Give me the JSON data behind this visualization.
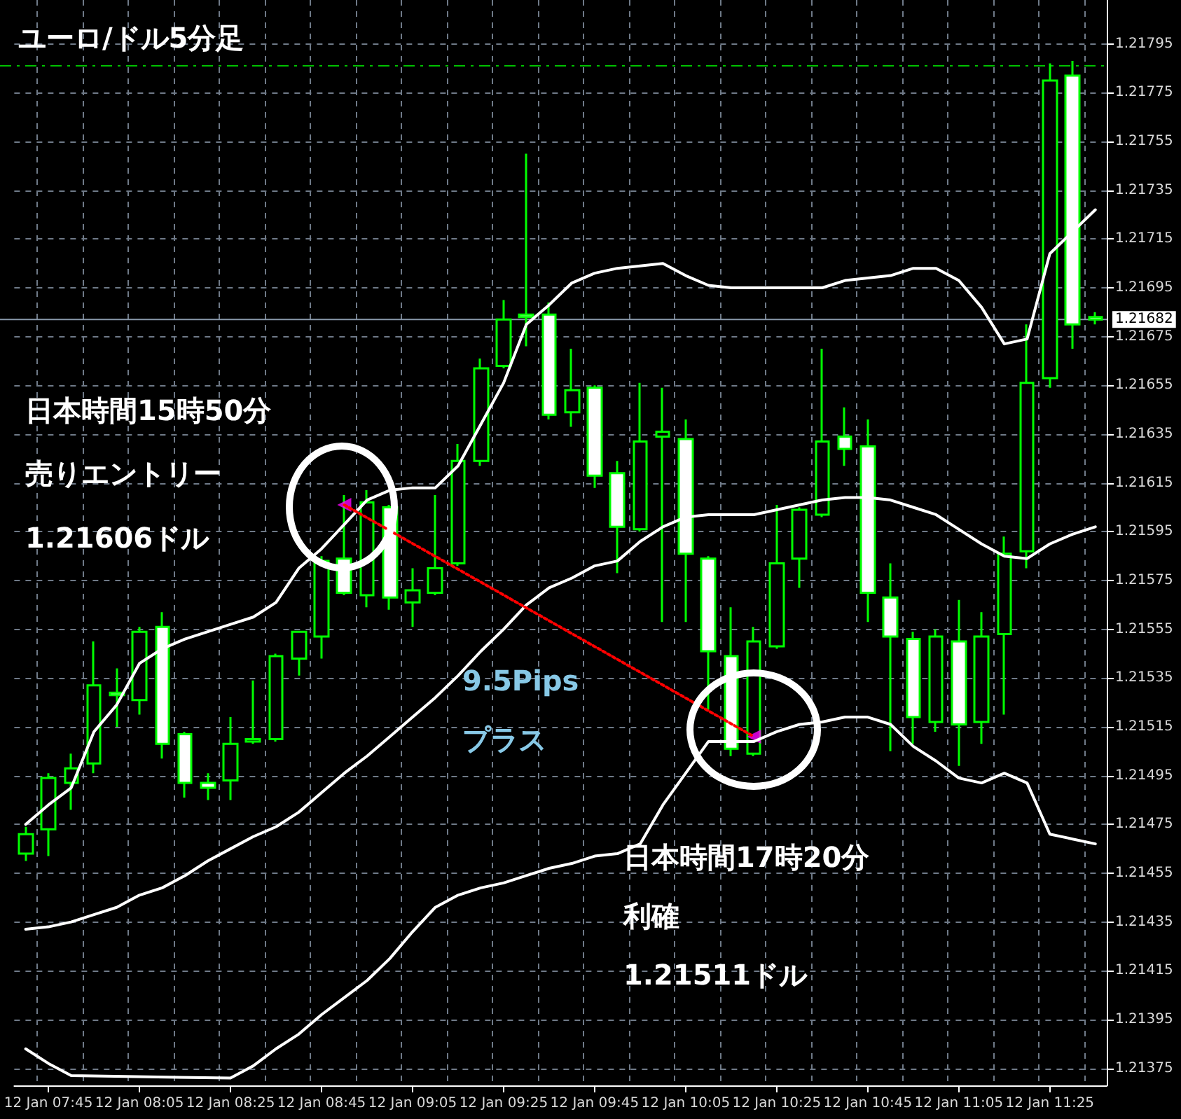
{
  "chart_data": {
    "type": "candlestick",
    "title": "ユーロ/ドル5分足",
    "categories": [
      null,
      "12 Jan 07:45",
      null,
      null,
      null,
      "12 Jan 08:05",
      null,
      null,
      null,
      "12 Jan 08:25",
      null,
      null,
      null,
      "12 Jan 08:45",
      null,
      null,
      null,
      "12 Jan 09:05",
      null,
      null,
      null,
      "12 Jan 09:25",
      null,
      null,
      null,
      "12 Jan 09:45",
      null,
      null,
      null,
      "12 Jan 10:05",
      null,
      null,
      null,
      "12 Jan 10:25",
      null,
      null,
      null,
      "12 Jan 10:45",
      null,
      null,
      null,
      "12 Jan 11:05",
      null,
      null,
      null,
      "12 Jan 11:25",
      null,
      null
    ],
    "color": "#00ff00",
    "ohlc": [
      [
        1.21463,
        1.21474,
        1.2146,
        1.21471
      ],
      [
        1.21473,
        1.21496,
        1.21462,
        1.21494
      ],
      [
        1.21492,
        1.21504,
        1.21481,
        1.21498
      ],
      [
        1.215,
        1.2155,
        1.21496,
        1.21532
      ],
      [
        1.21529,
        1.21539,
        1.21515,
        1.21528
      ],
      [
        1.21526,
        1.21556,
        1.2152,
        1.21554
      ],
      [
        1.21556,
        1.21562,
        1.21502,
        1.21508
      ],
      [
        1.21512,
        1.21513,
        1.21486,
        1.21492
      ],
      [
        1.21492,
        1.21496,
        1.21485,
        1.2149
      ],
      [
        1.21493,
        1.21519,
        1.21485,
        1.21508
      ],
      [
        1.21509,
        1.21534,
        1.21508,
        1.2151
      ],
      [
        1.2151,
        1.21545,
        1.21509,
        1.21544
      ],
      [
        1.21543,
        1.21554,
        1.21536,
        1.21554
      ],
      [
        1.21552,
        1.21585,
        1.21543,
        1.21583
      ],
      [
        1.21584,
        1.2161,
        1.21569,
        1.2157
      ],
      [
        1.21569,
        1.21612,
        1.21564,
        1.21607
      ],
      [
        1.21605,
        1.21606,
        1.21563,
        1.21568
      ],
      [
        1.21566,
        1.2158,
        1.21556,
        1.21571
      ],
      [
        1.2157,
        1.2161,
        1.21569,
        1.2158
      ],
      [
        1.21582,
        1.21631,
        1.21581,
        1.21624
      ],
      [
        1.21624,
        1.21666,
        1.21622,
        1.21662
      ],
      [
        1.21663,
        1.2169,
        1.21662,
        1.21682
      ],
      [
        1.21684,
        1.2175,
        1.21671,
        1.21683
      ],
      [
        1.21684,
        1.21689,
        1.21641,
        1.21643
      ],
      [
        1.21644,
        1.2167,
        1.21638,
        1.21653
      ],
      [
        1.21654,
        1.21655,
        1.21613,
        1.21618
      ],
      [
        1.21619,
        1.21624,
        1.21578,
        1.21597
      ],
      [
        1.21596,
        1.21656,
        1.21595,
        1.21632
      ],
      [
        1.21634,
        1.21654,
        1.21558,
        1.21636
      ],
      [
        1.21633,
        1.21641,
        1.21558,
        1.21586
      ],
      [
        1.21584,
        1.21585,
        1.21522,
        1.21546
      ],
      [
        1.21544,
        1.21564,
        1.21503,
        1.21506
      ],
      [
        1.21504,
        1.21556,
        1.21503,
        1.2155
      ],
      [
        1.21548,
        1.21606,
        1.21547,
        1.21582
      ],
      [
        1.21584,
        1.21605,
        1.21572,
        1.21604
      ],
      [
        1.21602,
        1.2167,
        1.21601,
        1.21632
      ],
      [
        1.21634,
        1.21646,
        1.21622,
        1.21629
      ],
      [
        1.2163,
        1.21641,
        1.21558,
        1.2157
      ],
      [
        1.21568,
        1.21582,
        1.21505,
        1.21552
      ],
      [
        1.21551,
        1.21554,
        1.21508,
        1.21519
      ],
      [
        1.21517,
        1.21555,
        1.21513,
        1.21552
      ],
      [
        1.2155,
        1.21567,
        1.21499,
        1.21516
      ],
      [
        1.21517,
        1.21562,
        1.21508,
        1.21552
      ],
      [
        1.21553,
        1.21593,
        1.2152,
        1.21586
      ],
      [
        1.21587,
        1.2168,
        1.2158,
        1.21656
      ],
      [
        1.21658,
        1.21787,
        1.21654,
        1.2178
      ],
      [
        1.21782,
        1.21788,
        1.2167,
        1.2168
      ],
      [
        1.21683,
        1.21685,
        1.2168,
        1.21682
      ]
    ],
    "series": [
      {
        "type": "line",
        "color": "#ffffff",
        "marker": "none",
        "values": [
          1.21475,
          1.21483,
          1.2149,
          1.21513,
          1.21524,
          1.21541,
          1.21547,
          1.21551,
          1.21554,
          1.21557,
          1.2156,
          1.21566,
          1.2158,
          1.21588,
          1.21598,
          1.21608,
          1.21612,
          1.21613,
          1.21613,
          1.21622,
          1.21639,
          1.21656,
          1.2168,
          1.21688,
          1.21697,
          1.21701,
          1.21703,
          1.21704,
          1.21705,
          1.217,
          1.21696,
          1.21695,
          1.21695,
          1.21695,
          1.21695,
          1.21695,
          1.21698,
          1.21699,
          1.217,
          1.21703,
          1.21703,
          1.21698,
          1.21687,
          1.21672,
          1.21674,
          1.21709,
          1.21718,
          1.21727
        ]
      },
      {
        "type": "line",
        "color": "#ffffff",
        "marker": "none",
        "values": [
          1.21432,
          1.21433,
          1.21435,
          1.21438,
          1.21441,
          1.21446,
          1.21449,
          1.21454,
          1.2146,
          1.21465,
          1.2147,
          1.21474,
          1.2148,
          1.21488,
          1.21496,
          1.21503,
          1.21511,
          1.21519,
          1.21527,
          1.21536,
          1.21546,
          1.21555,
          1.21565,
          1.21572,
          1.21576,
          1.21581,
          1.21583,
          1.21591,
          1.21597,
          1.21601,
          1.21602,
          1.21602,
          1.21602,
          1.21604,
          1.21606,
          1.21608,
          1.21609,
          1.21609,
          1.21608,
          1.21605,
          1.21602,
          1.21596,
          1.2159,
          1.21585,
          1.21584,
          1.2159,
          1.21594,
          1.21597
        ]
      },
      {
        "type": "line",
        "color": "#ffffff",
        "marker": "none",
        "values": [
          1.21383,
          1.21377,
          1.21372,
          null,
          null,
          null,
          null,
          null,
          null,
          1.21371,
          1.21376,
          1.21383,
          1.21389,
          1.21397,
          1.21404,
          1.21411,
          1.2142,
          1.21431,
          1.21441,
          1.21446,
          1.21449,
          1.21451,
          1.21454,
          1.21457,
          1.21459,
          1.21462,
          1.21463,
          1.21467,
          1.21483,
          1.21496,
          1.21509,
          1.21509,
          1.21509,
          1.21513,
          1.21516,
          1.21517,
          1.21519,
          1.21519,
          1.21516,
          1.21507,
          1.21501,
          1.21494,
          1.21492,
          1.21496,
          1.21492,
          1.21471,
          1.21469,
          1.21467
        ]
      },
      {
        "type": "line",
        "color": "#ff0000",
        "marker": "none",
        "line_style": "dotted",
        "values": [
          null,
          null,
          null,
          null,
          null,
          null,
          null,
          null,
          null,
          null,
          null,
          null,
          null,
          null,
          1.21606,
          null,
          null,
          null,
          null,
          null,
          null,
          null,
          null,
          null,
          null,
          null,
          null,
          null,
          null,
          null,
          null,
          null,
          1.21511,
          null,
          null,
          null,
          null,
          null,
          null,
          null,
          null,
          null,
          null,
          null,
          null,
          null,
          null,
          null
        ]
      },
      {
        "type": "scatter",
        "color": "#ff00ff",
        "marker": "triangle",
        "values": [
          null,
          null,
          null,
          null,
          null,
          null,
          null,
          null,
          null,
          null,
          null,
          null,
          null,
          null,
          1.21606,
          null,
          null,
          null,
          null,
          null,
          null,
          null,
          null,
          null,
          null,
          null,
          null,
          null,
          null,
          null,
          null,
          null,
          1.21511,
          null,
          null,
          null,
          null,
          null,
          null,
          null,
          null,
          null,
          null,
          null,
          null,
          null,
          null,
          null
        ]
      }
    ],
    "ylim": [
      1.21368,
      1.21813
    ],
    "yticks": [
      1.21375,
      1.21395,
      1.21415,
      1.21435,
      1.21455,
      1.21475,
      1.21495,
      1.21515,
      1.21535,
      1.21555,
      1.21575,
      1.21595,
      1.21615,
      1.21635,
      1.21655,
      1.21675,
      1.21695,
      1.21715,
      1.21735,
      1.21755,
      1.21775,
      1.21795
    ],
    "ref_lines": [
      {
        "axis": "y",
        "value": 1.21682,
        "label": "1.21682",
        "color": "#8898aa",
        "line_style": "solid"
      },
      {
        "axis": "y",
        "value": 1.21786,
        "label": null,
        "color": "#00c000",
        "line_style": "dashed"
      }
    ],
    "grid": true,
    "annotations": [
      "日本時間15時50分",
      "売りエントリー",
      "1.21606ドル",
      "9.5Pips",
      "プラス",
      "日本時間17時20分",
      "利確",
      "1.21511ドル"
    ]
  }
}
